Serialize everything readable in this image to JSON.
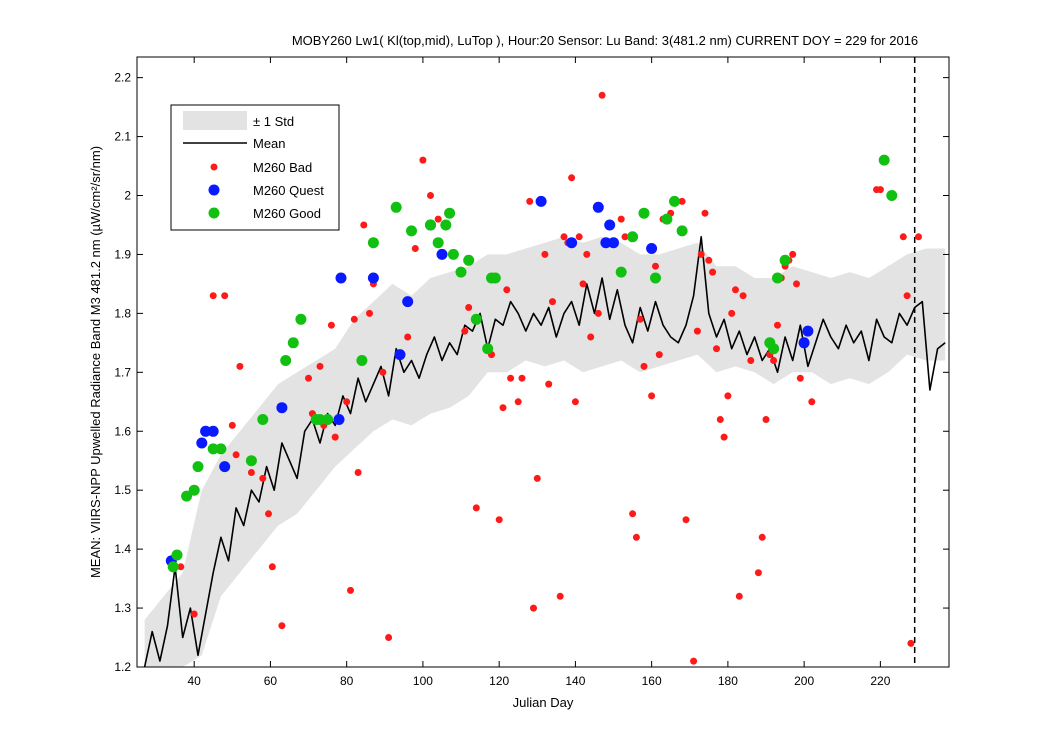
{
  "colors": {
    "background": "#ffffff",
    "std_band": "#e3e3e3",
    "mean_line": "#000000",
    "bad": "#ff1a1a",
    "quest": "#0a1aff",
    "good": "#12c012"
  },
  "chart_data": {
    "type": "line",
    "title": "MOBY260   Lw1( Kl(top,mid), LuTop ),   Hour:20 Sensor: Lu Band: 3(481.2 nm)   CURRENT DOY = 229 for 2016",
    "xlabel": "Julian Day",
    "ylabel": "MEAN: VIIRS-NPP Upwelled Radiance Band M3 481.2 nm (µW/cm²/sr/nm)",
    "xlim": [
      25,
      238
    ],
    "ylim": [
      1.2,
      2.235
    ],
    "xticks": [
      40,
      60,
      80,
      100,
      120,
      140,
      160,
      180,
      200,
      220
    ],
    "yticks": [
      1.2,
      1.3,
      1.4,
      1.5,
      1.6,
      1.7,
      1.8,
      1.9,
      2.0,
      2.1,
      2.2
    ],
    "xtick_labels": [
      "40",
      "60",
      "80",
      "100",
      "120",
      "140",
      "160",
      "180",
      "200",
      "220"
    ],
    "ytick_labels": [
      "1.2",
      "1.3",
      "1.4",
      "1.5",
      "1.6",
      "1.7",
      "1.8",
      "1.9",
      "2",
      "2.1",
      "2.2"
    ],
    "current_doy": 229,
    "legend_position": "top-left",
    "legend": {
      "std": "± 1 Std",
      "mean": "Mean",
      "bad": "M260 Bad",
      "quest": "M260 Quest",
      "good": "M260 Good"
    },
    "mean": {
      "name": "Mean",
      "x": [
        27,
        29,
        31,
        33,
        35,
        37,
        39,
        41,
        43,
        45,
        47,
        49,
        51,
        53,
        55,
        57,
        59,
        61,
        63,
        65,
        67,
        69,
        71,
        73,
        75,
        77,
        79,
        81,
        83,
        85,
        87,
        89,
        91,
        93,
        95,
        97,
        99,
        101,
        103,
        105,
        107,
        109,
        111,
        113,
        115,
        117,
        119,
        121,
        123,
        125,
        127,
        129,
        131,
        133,
        135,
        137,
        139,
        141,
        143,
        145,
        147,
        149,
        151,
        153,
        155,
        157,
        159,
        161,
        163,
        165,
        167,
        169,
        171,
        173,
        175,
        177,
        179,
        181,
        183,
        185,
        187,
        189,
        191,
        193,
        195,
        197,
        199,
        201,
        203,
        205,
        207,
        209,
        211,
        213,
        215,
        217,
        219,
        221,
        223,
        225,
        227,
        229,
        231,
        233,
        235,
        237
      ],
      "y": [
        1.2,
        1.26,
        1.21,
        1.27,
        1.37,
        1.25,
        1.3,
        1.22,
        1.29,
        1.36,
        1.42,
        1.38,
        1.47,
        1.44,
        1.5,
        1.48,
        1.54,
        1.5,
        1.58,
        1.55,
        1.52,
        1.6,
        1.62,
        1.58,
        1.63,
        1.61,
        1.66,
        1.63,
        1.69,
        1.65,
        1.68,
        1.71,
        1.66,
        1.74,
        1.7,
        1.72,
        1.69,
        1.73,
        1.76,
        1.72,
        1.75,
        1.73,
        1.78,
        1.77,
        1.8,
        1.74,
        1.79,
        1.78,
        1.82,
        1.8,
        1.77,
        1.8,
        1.78,
        1.81,
        1.76,
        1.8,
        1.82,
        1.78,
        1.85,
        1.8,
        1.86,
        1.79,
        1.84,
        1.78,
        1.75,
        1.81,
        1.77,
        1.82,
        1.78,
        1.76,
        1.75,
        1.78,
        1.83,
        1.93,
        1.8,
        1.76,
        1.79,
        1.74,
        1.77,
        1.73,
        1.76,
        1.72,
        1.74,
        1.7,
        1.76,
        1.72,
        1.78,
        1.71,
        1.75,
        1.79,
        1.76,
        1.74,
        1.78,
        1.75,
        1.77,
        1.72,
        1.79,
        1.76,
        1.75,
        1.8,
        1.78,
        1.81,
        1.82,
        1.67,
        1.74,
        1.75
      ]
    },
    "std_band": {
      "name": "± 1 Std",
      "x": [
        27,
        32,
        37,
        42,
        47,
        52,
        57,
        62,
        67,
        72,
        77,
        82,
        87,
        92,
        97,
        102,
        107,
        112,
        117,
        122,
        127,
        132,
        137,
        142,
        147,
        152,
        157,
        162,
        167,
        172,
        177,
        182,
        187,
        192,
        197,
        202,
        207,
        212,
        217,
        222,
        227,
        232,
        237
      ],
      "lower": [
        1.2,
        1.2,
        1.2,
        1.22,
        1.32,
        1.36,
        1.4,
        1.44,
        1.46,
        1.5,
        1.54,
        1.57,
        1.6,
        1.62,
        1.61,
        1.63,
        1.64,
        1.66,
        1.7,
        1.7,
        1.72,
        1.71,
        1.72,
        1.7,
        1.71,
        1.72,
        1.7,
        1.71,
        1.72,
        1.73,
        1.7,
        1.71,
        1.7,
        1.68,
        1.7,
        1.7,
        1.68,
        1.69,
        1.68,
        1.7,
        1.73,
        1.72,
        1.72
      ],
      "upper": [
        1.28,
        1.32,
        1.36,
        1.5,
        1.56,
        1.6,
        1.64,
        1.68,
        1.7,
        1.72,
        1.74,
        1.79,
        1.82,
        1.85,
        1.83,
        1.86,
        1.87,
        1.88,
        1.9,
        1.9,
        1.91,
        1.92,
        1.93,
        1.92,
        1.93,
        1.92,
        1.9,
        1.9,
        1.91,
        1.92,
        1.88,
        1.88,
        1.86,
        1.86,
        1.88,
        1.87,
        1.86,
        1.87,
        1.86,
        1.88,
        1.9,
        1.91,
        1.91
      ]
    },
    "series": [
      {
        "name": "M260 Bad",
        "x": [
          36.5,
          40,
          45,
          48,
          50,
          51,
          52,
          55,
          58,
          59.5,
          60.5,
          63,
          70,
          71,
          73,
          74,
          76,
          77,
          80,
          81,
          82,
          83,
          84.5,
          86,
          87,
          89.5,
          91,
          96,
          98,
          100,
          102,
          104,
          111,
          112,
          114,
          118,
          120,
          121,
          122,
          123,
          125,
          126,
          128,
          129,
          130,
          132,
          133,
          134,
          136,
          137,
          138,
          139,
          140,
          141,
          142,
          143,
          144,
          146,
          147,
          148,
          152,
          153,
          155,
          156,
          157,
          158,
          160,
          161,
          162,
          163,
          165,
          166,
          168,
          169,
          171,
          172,
          173,
          174,
          175,
          176,
          177,
          178,
          179,
          180,
          181,
          182,
          183,
          184,
          186,
          188,
          189,
          190,
          191,
          192,
          193,
          194,
          195,
          196,
          197,
          198,
          199,
          200,
          202,
          219,
          220,
          226,
          227,
          228,
          230
        ],
        "y": [
          1.37,
          1.29,
          1.83,
          1.83,
          1.61,
          1.56,
          1.71,
          1.53,
          1.52,
          1.46,
          1.37,
          1.27,
          1.69,
          1.63,
          1.71,
          1.61,
          1.78,
          1.59,
          1.65,
          1.33,
          1.79,
          1.53,
          1.95,
          1.8,
          1.85,
          1.7,
          1.25,
          1.76,
          1.91,
          2.06,
          2.0,
          1.96,
          1.77,
          1.81,
          1.47,
          1.73,
          1.45,
          1.64,
          1.84,
          1.69,
          1.65,
          1.69,
          1.99,
          1.3,
          1.52,
          1.9,
          1.68,
          1.82,
          1.32,
          1.93,
          1.92,
          2.03,
          1.65,
          1.93,
          1.85,
          1.9,
          1.76,
          1.8,
          2.17,
          1.92,
          1.96,
          1.93,
          1.46,
          1.42,
          1.79,
          1.71,
          1.66,
          1.88,
          1.73,
          1.96,
          1.97,
          1.99,
          1.99,
          1.45,
          1.21,
          1.77,
          1.9,
          1.97,
          1.89,
          1.87,
          1.74,
          1.62,
          1.59,
          1.66,
          1.8,
          1.84,
          1.32,
          1.83,
          1.72,
          1.36,
          1.42,
          1.62,
          1.73,
          1.72,
          1.78,
          1.86,
          1.88,
          1.89,
          1.9,
          1.85,
          1.69,
          1.75,
          1.65,
          2.01,
          2.01,
          1.93,
          1.83,
          1.24,
          1.93
        ]
      },
      {
        "name": "M260 Quest",
        "x": [
          34,
          42,
          43,
          45,
          48,
          63,
          78,
          78.5,
          87,
          94,
          96,
          102,
          105,
          131,
          139,
          146,
          148,
          149,
          150,
          160,
          200,
          201
        ],
        "y": [
          1.38,
          1.58,
          1.6,
          1.6,
          1.54,
          1.64,
          1.62,
          1.86,
          1.86,
          1.73,
          1.82,
          1.95,
          1.9,
          1.99,
          1.92,
          1.98,
          1.92,
          1.95,
          1.92,
          1.91,
          1.75,
          1.77
        ],
        "point_color": "#0a1aff"
      },
      {
        "name": "M260 Good",
        "x": [
          34.5,
          35.5,
          38,
          40,
          41,
          45,
          47,
          55,
          58,
          64,
          66,
          68,
          72,
          73,
          75,
          84,
          87,
          93,
          97,
          102,
          104,
          106,
          107,
          108,
          110,
          112,
          114,
          117,
          118,
          119,
          152,
          155,
          158,
          161,
          164,
          166,
          168,
          191,
          192,
          193,
          195,
          221,
          223
        ],
        "y": [
          1.37,
          1.39,
          1.49,
          1.5,
          1.54,
          1.57,
          1.57,
          1.55,
          1.62,
          1.72,
          1.75,
          1.79,
          1.62,
          1.62,
          1.62,
          1.72,
          1.92,
          1.98,
          1.94,
          1.95,
          1.92,
          1.95,
          1.97,
          1.9,
          1.87,
          1.89,
          1.79,
          1.74,
          1.86,
          1.86,
          1.87,
          1.93,
          1.97,
          1.86,
          1.96,
          1.99,
          1.94,
          1.75,
          1.74,
          1.86,
          1.89,
          2.06,
          2.0
        ],
        "point_color": "#12c012"
      }
    ]
  }
}
